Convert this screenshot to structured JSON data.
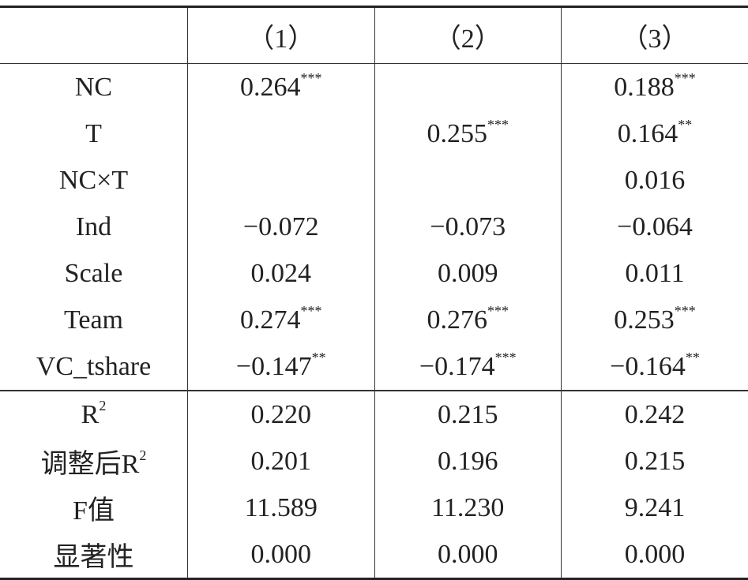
{
  "table": {
    "header": [
      "（1）",
      "（2）",
      "（3）"
    ],
    "rows": [
      {
        "label": "NC",
        "cells": [
          {
            "value": "0.264",
            "stars": "***"
          },
          null,
          {
            "value": "0.188",
            "stars": "***"
          }
        ]
      },
      {
        "label": "T",
        "cells": [
          null,
          {
            "value": "0.255",
            "stars": "***"
          },
          {
            "value": "0.164",
            "stars": "**"
          }
        ]
      },
      {
        "label": "NC×T",
        "cells": [
          null,
          null,
          {
            "value": "0.016"
          }
        ]
      },
      {
        "label": "Ind",
        "cells": [
          {
            "value": "−0.072"
          },
          {
            "value": "−0.073"
          },
          {
            "value": "−0.064"
          }
        ]
      },
      {
        "label": "Scale",
        "cells": [
          {
            "value": "0.024"
          },
          {
            "value": "0.009"
          },
          {
            "value": "0.011"
          }
        ]
      },
      {
        "label": "Team",
        "cells": [
          {
            "value": "0.274",
            "stars": "***"
          },
          {
            "value": "0.276",
            "stars": "***"
          },
          {
            "value": "0.253",
            "stars": "***"
          }
        ]
      },
      {
        "label": "VC_tshare",
        "cells": [
          {
            "value": "−0.147",
            "stars": "**"
          },
          {
            "value": "−0.174",
            "stars": "***"
          },
          {
            "value": "−0.164",
            "stars": "**"
          }
        ]
      }
    ],
    "stats": [
      {
        "label": "R",
        "label_sup": "2",
        "cells": [
          {
            "value": "0.220"
          },
          {
            "value": "0.215"
          },
          {
            "value": "0.242"
          }
        ]
      },
      {
        "label": "调整后R",
        "label_sup": "2",
        "cells": [
          {
            "value": "0.201"
          },
          {
            "value": "0.196"
          },
          {
            "value": "0.215"
          }
        ]
      },
      {
        "label": "F值",
        "cells": [
          {
            "value": "11.589"
          },
          {
            "value": "11.230"
          },
          {
            "value": "9.241"
          }
        ]
      },
      {
        "label": "显著性",
        "cells": [
          {
            "value": "0.000"
          },
          {
            "value": "0.000"
          },
          {
            "value": "0.000"
          }
        ]
      }
    ]
  }
}
